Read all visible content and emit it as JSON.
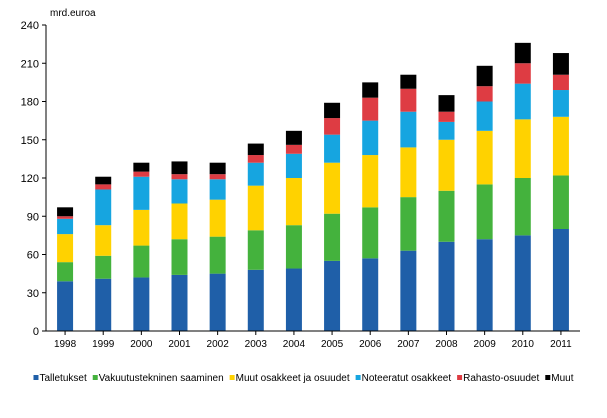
{
  "chart_data": {
    "type": "bar",
    "stacked": true,
    "unit_label": "mrd.euroa",
    "title": "",
    "xlabel": "",
    "ylabel": "",
    "ylim": [
      0,
      240
    ],
    "yticks": [
      0,
      30,
      60,
      90,
      120,
      150,
      180,
      210,
      240
    ],
    "grid": false,
    "legend_position": "bottom",
    "categories": [
      "1998",
      "1999",
      "2000",
      "2001",
      "2002",
      "2003",
      "2004",
      "2005",
      "2006",
      "2007",
      "2008",
      "2009",
      "2010",
      "2011"
    ],
    "series": [
      {
        "name": "Talletukset",
        "color": "#1f5fa8",
        "values": [
          39,
          41,
          42,
          44,
          45,
          48,
          49,
          55,
          57,
          63,
          70,
          72,
          75,
          80
        ]
      },
      {
        "name": "Vakuutustekninen saaminen",
        "color": "#44b23d",
        "values": [
          15,
          18,
          25,
          28,
          29,
          31,
          34,
          37,
          40,
          42,
          40,
          43,
          45,
          42
        ]
      },
      {
        "name": "Muut osakkeet ja osuudet",
        "color": "#ffd200",
        "values": [
          22,
          24,
          28,
          28,
          29,
          35,
          37,
          40,
          41,
          39,
          40,
          42,
          46,
          46
        ]
      },
      {
        "name": "Noteeratut osakkeet",
        "color": "#16a5e0",
        "values": [
          12,
          28,
          26,
          19,
          16,
          18,
          19,
          22,
          27,
          28,
          14,
          23,
          28,
          21
        ]
      },
      {
        "name": "Rahasto-osuudet",
        "color": "#de3c43",
        "values": [
          2,
          4,
          4,
          4,
          4,
          6,
          7,
          13,
          18,
          18,
          8,
          12,
          16,
          12
        ]
      },
      {
        "name": "Muut",
        "color": "#000000",
        "values": [
          7,
          6,
          7,
          10,
          9,
          9,
          11,
          12,
          12,
          11,
          13,
          16,
          16,
          17
        ]
      }
    ]
  }
}
